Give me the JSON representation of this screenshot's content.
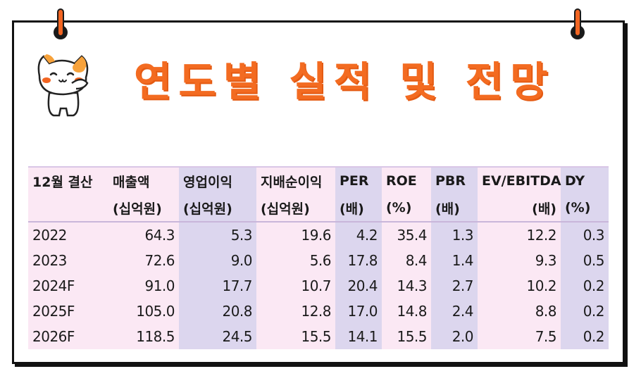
{
  "title": "연도별 실적 및 전망",
  "table": {
    "header_row1": [
      "12월 결산",
      "매출액",
      "영업이익",
      "지배순이익",
      "PER",
      "ROE",
      "PBR",
      "EV/EBITDA",
      "DY"
    ],
    "header_row2": [
      "",
      "(십억원)",
      "(십억원)",
      "(십억원)",
      "(배)",
      "(%)",
      "(배)",
      "(배)",
      "(%)"
    ],
    "rows": [
      [
        "2022",
        "64.3",
        "5.3",
        "19.6",
        "4.2",
        "35.4",
        "1.3",
        "12.2",
        "0.3"
      ],
      [
        "2023",
        "72.6",
        "9.0",
        "5.6",
        "17.8",
        "8.4",
        "1.4",
        "9.3",
        "0.5"
      ],
      [
        "2024F",
        "91.0",
        "17.7",
        "10.7",
        "20.4",
        "14.3",
        "2.7",
        "10.2",
        "0.2"
      ],
      [
        "2025F",
        "105.0",
        "20.8",
        "12.8",
        "17.0",
        "14.8",
        "2.4",
        "8.8",
        "0.2"
      ],
      [
        "2026F",
        "118.5",
        "24.5",
        "15.5",
        "14.1",
        "15.5",
        "2.0",
        "7.5",
        "0.2"
      ]
    ]
  },
  "colors": {
    "title": "#f36b21",
    "pink_column": "#fbe8f4",
    "lavender_column": "#dcd6ee",
    "frame": "#111111"
  },
  "icons": {
    "mascot": "cat-mascot-icon",
    "pins": "pushpin-icon"
  }
}
